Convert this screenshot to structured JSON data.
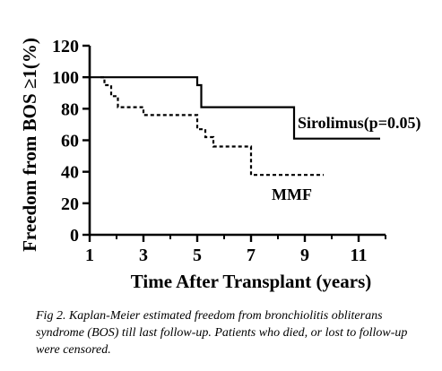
{
  "chart_data": {
    "type": "line",
    "xlabel": "Time After Transplant (years)",
    "ylabel": "Freedom from BOS ≥1(%)",
    "xlim": [
      1,
      12
    ],
    "ylim": [
      0,
      120
    ],
    "xticks": [
      1,
      3,
      5,
      7,
      9,
      11
    ],
    "yticks": [
      0,
      20,
      40,
      60,
      80,
      100,
      120
    ],
    "x_tick_labels": [
      "1",
      "3",
      "5",
      "7",
      "9",
      "11"
    ],
    "y_tick_labels": [
      "0",
      "20",
      "40",
      "60",
      "80",
      "100",
      "120"
    ],
    "grid": false,
    "legend": "none",
    "series": [
      {
        "name": "Sirolimus(p=0.05)",
        "style": "solid",
        "color": "#000000",
        "x": [
          1,
          5.0,
          5.0,
          5.15,
          5.15,
          8.6,
          8.6,
          11.8
        ],
        "y": [
          100,
          100,
          95,
          95,
          81,
          81,
          61,
          61
        ]
      },
      {
        "name": "MMF",
        "style": "dashed",
        "color": "#000000",
        "x": [
          1.4,
          1.55,
          1.55,
          1.8,
          1.8,
          2.05,
          2.05,
          3.0,
          3.0,
          5.0,
          5.0,
          5.3,
          5.3,
          5.6,
          5.6,
          7.0,
          7.0,
          9.7
        ],
        "y": [
          100,
          100,
          95,
          95,
          88,
          88,
          81,
          81,
          76,
          76,
          67,
          67,
          62,
          62,
          56,
          56,
          38,
          38
        ]
      }
    ]
  },
  "caption": "Fig 2.  Kaplan-Meier estimated freedom from bronchiolitis obliterans syndrome (BOS) till last follow-up. Patients who died, or lost to follow-up were censored."
}
